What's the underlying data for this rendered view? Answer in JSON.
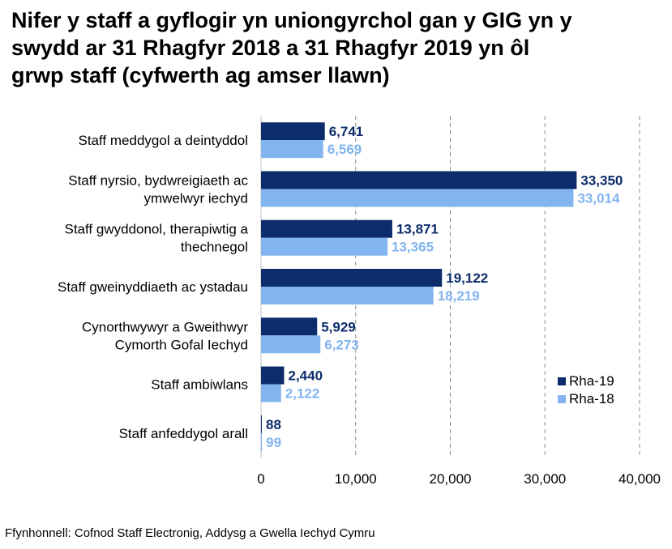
{
  "title_lines": [
    "Nifer y staff a gyflogir yn uniongyrchol gan y GIG yn y",
    "swydd ar 31 Rhagfyr 2018 a 31 Rhagfyr 2019 yn ôl",
    "grwp staff (cyfwerth ag amser llawn)"
  ],
  "source": "Ffynhonnell: Cofnod Staff Electronig, Addysg a Gwella Iechyd Cymru",
  "chart_data": {
    "type": "bar",
    "orientation": "horizontal",
    "title": "Nifer y staff a gyflogir yn uniongyrchol gan y GIG yn y swydd ar 31 Rhagfyr 2018 a 31 Rhagfyr 2019 yn ôl grwp staff (cyfwerth ag amser llawn)",
    "categories": [
      [
        "Staff meddygol a deintyddol"
      ],
      [
        "Staff nyrsio, bydwreigiaeth ac",
        "ymwelwyr iechyd"
      ],
      [
        "Staff gwyddonol, therapiwtig a",
        "thechnegol"
      ],
      [
        "Staff gweinyddiaeth ac ystadau"
      ],
      [
        "Cynorthwywyr a Gweithwyr",
        "Cymorth Gofal Iechyd"
      ],
      [
        "Staff ambiwlans"
      ],
      [
        "Staff anfeddygol arall"
      ]
    ],
    "series": [
      {
        "name": "Rha-19",
        "color": "#0d2c6b",
        "values": [
          6741,
          33350,
          13871,
          19122,
          5929,
          2440,
          88
        ],
        "labels": [
          "6,741",
          "33,350",
          "13,871",
          "19,122",
          "5,929",
          "2,440",
          "88"
        ]
      },
      {
        "name": "Rha-18",
        "color": "#82b4ef",
        "values": [
          6569,
          33014,
          13365,
          18219,
          6273,
          2122,
          99
        ],
        "labels": [
          "6,569",
          "33,014",
          "13,365",
          "18,219",
          "6,273",
          "2,122",
          "99"
        ]
      }
    ],
    "xlim": [
      0,
      40000
    ],
    "xticks": [
      0,
      10000,
      20000,
      30000,
      40000
    ],
    "xtick_labels": [
      "0",
      "10,000",
      "20,000",
      "30,000",
      "40,000"
    ],
    "grid": "vertical dashed",
    "legend_position": "bottom-right"
  }
}
